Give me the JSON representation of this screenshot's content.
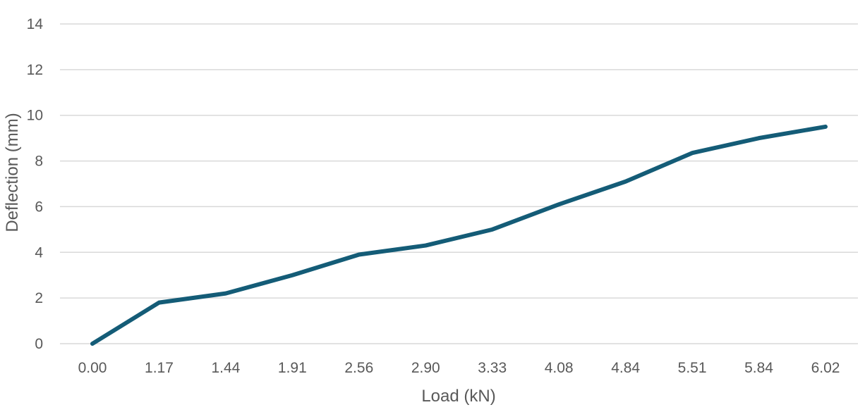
{
  "chart_data": {
    "type": "line",
    "title": "",
    "xlabel": "Load (kN)",
    "ylabel": "Deflection (mm)",
    "categories": [
      "0.00",
      "1.17",
      "1.44",
      "1.91",
      "2.56",
      "2.90",
      "3.33",
      "4.08",
      "4.84",
      "5.51",
      "5.84",
      "6.02"
    ],
    "series": [
      {
        "values": [
          0,
          1.8,
          2.2,
          3.0,
          3.9,
          4.3,
          5.0,
          6.1,
          7.1,
          8.35,
          9.0,
          9.5
        ],
        "color": "#145c77"
      }
    ],
    "ylim": [
      0,
      14
    ],
    "yticks": [
      0,
      2,
      4,
      6,
      8,
      10,
      12,
      14
    ],
    "grid": true,
    "legend": "none"
  }
}
